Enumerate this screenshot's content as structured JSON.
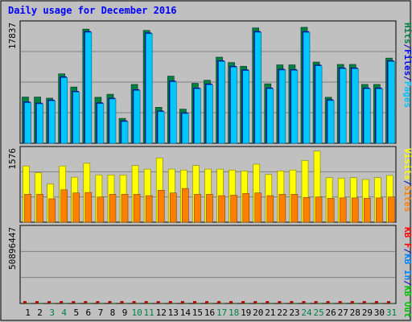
{
  "chart_data": {
    "type": "bar",
    "title": "Daily usage for December 2016",
    "categories": [
      "1",
      "2",
      "3",
      "4",
      "5",
      "6",
      "7",
      "8",
      "9",
      "10",
      "11",
      "12",
      "13",
      "14",
      "15",
      "16",
      "17",
      "18",
      "19",
      "20",
      "21",
      "22",
      "23",
      "24",
      "25",
      "26",
      "27",
      "28",
      "29",
      "30",
      "31"
    ],
    "weekend_days": [
      "3",
      "4",
      "10",
      "11",
      "17",
      "18",
      "24",
      "25",
      "31"
    ],
    "panels": [
      {
        "name": "hits-files-pages",
        "ymax_label": "17837",
        "ymax": 17837,
        "legend": [
          {
            "text": "Hits",
            "color": "#008040"
          },
          {
            "text": "/",
            "color": "#0000c0"
          },
          {
            "text": "Files",
            "color": "#0000ff"
          },
          {
            "text": "/",
            "color": "#0000c0"
          },
          {
            "text": "Pages",
            "color": "#00c0ff"
          }
        ],
        "series": [
          {
            "name": "Hits",
            "color": "#008040",
            "values": [
              7020,
              7020,
              6850,
              10540,
              8540,
              17330,
              6980,
              7440,
              3780,
              8930,
              17130,
              5460,
              10190,
              5180,
              9100,
              9560,
              13070,
              12260,
              11680,
              17510,
              9030,
              11900,
              11900,
              17600,
              12330,
              6980,
              11970,
              11970,
              8930,
              8930,
              12930
            ]
          },
          {
            "name": "Files",
            "color": "#0000ff",
            "values": [
              6290,
              6110,
              6570,
              10090,
              7900,
              16970,
              6150,
              6850,
              3420,
              8140,
              16760,
              4910,
              9460,
              4640,
              8400,
              9010,
              12540,
              11690,
              11160,
              16970,
              8410,
              11240,
              11190,
              16960,
              11880,
              6610,
              11450,
              11450,
              8400,
              8400,
              12540
            ]
          },
          {
            "name": "Pages",
            "color": "#00c0ff",
            "values": [
              6290,
              6110,
              6570,
              10090,
              7900,
              16970,
              6150,
              6850,
              3420,
              8140,
              16760,
              4910,
              9460,
              4640,
              8400,
              9010,
              12540,
              11690,
              11160,
              16970,
              8410,
              11240,
              11190,
              16960,
              11880,
              6610,
              11450,
              11450,
              8400,
              8400,
              12540
            ]
          }
        ]
      },
      {
        "name": "visits-sites",
        "ymax_label": "1576",
        "ymax": 1576,
        "legend": [
          {
            "text": "Visits",
            "color": "#ffff00"
          },
          {
            "text": "/",
            "color": "#0000c0"
          },
          {
            "text": "Sites",
            "color": "#ff8000"
          }
        ],
        "series": [
          {
            "name": "Visits",
            "color": "#ffff00",
            "values": [
              1250,
              1100,
              850,
              1250,
              1000,
              1310,
              1050,
              1050,
              1050,
              1260,
              1180,
              1430,
              1180,
              1160,
              1260,
              1180,
              1180,
              1160,
              1140,
              1290,
              1060,
              1140,
              1160,
              1370,
              1580,
              990,
              980,
              990,
              950,
              990,
              1040
            ]
          },
          {
            "name": "Sites",
            "color": "#ff8000",
            "values": [
              620,
              620,
              520,
              720,
              650,
              660,
              560,
              620,
              620,
              620,
              590,
              710,
              650,
              750,
              620,
              620,
              590,
              600,
              640,
              650,
              590,
              620,
              620,
              550,
              560,
              530,
              540,
              540,
              530,
              540,
              560
            ]
          }
        ]
      },
      {
        "name": "kbin-kbout-kbf",
        "ymax_label": "50896447",
        "ymax": 50896447,
        "legend": [
          {
            "text": "KB F",
            "color": "#ff0000"
          },
          {
            "text": "/",
            "color": "#0000c0"
          },
          {
            "text": "KB In",
            "color": "#0080ff"
          },
          {
            "text": "/",
            "color": "#0000c0"
          },
          {
            "text": "KB Out",
            "color": "#00c000"
          }
        ],
        "series": [
          {
            "name": "KB Out",
            "color": "#00cc00",
            "values": [
              20400,
              18800,
              8800,
              11500,
              15800,
              26100,
              8200,
              16300,
              4100,
              7700,
              16600,
              7000,
              9000,
              9000,
              9300,
              10400,
              17400,
              21700,
              27800,
              36400,
              8900,
              25300,
              43600,
              50600,
              44300,
              17700,
              14500,
              23500,
              21200,
              10200,
              15600
            ]
          }
        ]
      }
    ]
  }
}
